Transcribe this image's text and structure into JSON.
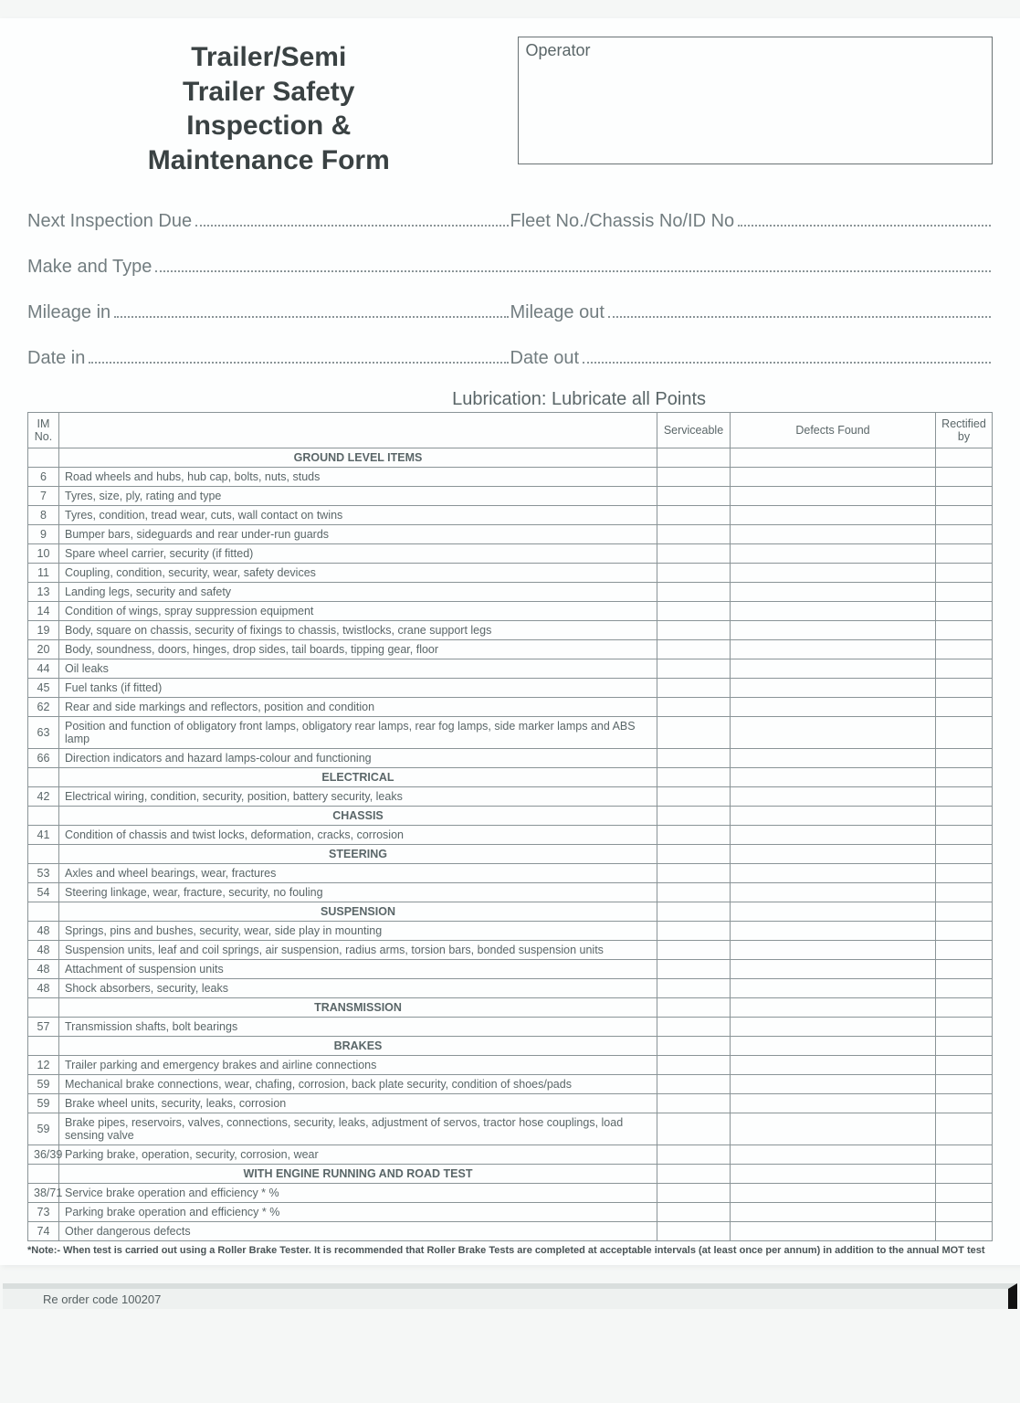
{
  "title_lines": [
    "Trailer/Semi",
    "Trailer Safety",
    "Inspection &",
    "Maintenance Form"
  ],
  "operator_label": "Operator",
  "fields": {
    "next_inspection": "Next Inspection Due",
    "fleet_no": "Fleet No./Chassis No/ID No",
    "make_type": "Make and Type",
    "mileage_in": "Mileage in",
    "mileage_out": "Mileage out",
    "date_in": "Date in",
    "date_out": "Date out"
  },
  "lubrication_note": "Lubrication: Lubricate all Points",
  "columns": {
    "im": "IM No.",
    "serviceable": "Serviceable",
    "defects": "Defects Found",
    "rectified": "Rectified by"
  },
  "rows": [
    {
      "type": "section",
      "label": "GROUND LEVEL ITEMS"
    },
    {
      "im": "6",
      "desc": "Road wheels and hubs, hub cap, bolts, nuts, studs"
    },
    {
      "im": "7",
      "desc": "Tyres, size, ply, rating and type"
    },
    {
      "im": "8",
      "desc": "Tyres, condition, tread wear, cuts, wall contact on twins"
    },
    {
      "im": "9",
      "desc": "Bumper bars, sideguards and rear under-run guards"
    },
    {
      "im": "10",
      "desc": "Spare wheel carrier, security (if fitted)"
    },
    {
      "im": "11",
      "desc": "Coupling, condition, security, wear, safety devices"
    },
    {
      "im": "13",
      "desc": "Landing legs, security and safety"
    },
    {
      "im": "14",
      "desc": "Condition of wings, spray suppression equipment"
    },
    {
      "im": "19",
      "desc": "Body, square on chassis, security of fixings to chassis, twistlocks, crane support legs"
    },
    {
      "im": "20",
      "desc": "Body, soundness, doors, hinges, drop sides, tail boards, tipping gear, floor"
    },
    {
      "im": "44",
      "desc": "Oil leaks"
    },
    {
      "im": "45",
      "desc": "Fuel tanks (if fitted)"
    },
    {
      "im": "62",
      "desc": "Rear and side markings and reflectors, position and condition"
    },
    {
      "im": "63",
      "desc": "Position and function of obligatory front lamps, obligatory rear lamps, rear fog lamps, side marker lamps and ABS lamp"
    },
    {
      "im": "66",
      "desc": "Direction indicators and hazard lamps-colour and functioning"
    },
    {
      "type": "section",
      "label": "ELECTRICAL"
    },
    {
      "im": "42",
      "desc": "Electrical wiring, condition, security, position, battery security, leaks"
    },
    {
      "type": "section",
      "label": "CHASSIS"
    },
    {
      "im": "41",
      "desc": "Condition of chassis and twist locks, deformation, cracks, corrosion"
    },
    {
      "type": "section",
      "label": "STEERING"
    },
    {
      "im": "53",
      "desc": "Axles and wheel bearings, wear, fractures"
    },
    {
      "im": "54",
      "desc": "Steering linkage, wear, fracture, security, no fouling"
    },
    {
      "type": "section",
      "label": "SUSPENSION"
    },
    {
      "im": "48",
      "desc": "Springs, pins and bushes, security, wear, side play in mounting"
    },
    {
      "im": "48",
      "desc": "Suspension units, leaf and coil springs, air suspension, radius arms, torsion bars, bonded suspension units"
    },
    {
      "im": "48",
      "desc": "Attachment of suspension units"
    },
    {
      "im": "48",
      "desc": "Shock absorbers, security, leaks"
    },
    {
      "type": "section",
      "label": "TRANSMISSION"
    },
    {
      "im": "57",
      "desc": "Transmission shafts, bolt bearings"
    },
    {
      "type": "section",
      "label": "BRAKES"
    },
    {
      "im": "12",
      "desc": "Trailer parking and emergency brakes and airline connections"
    },
    {
      "im": "59",
      "desc": "Mechanical brake connections, wear, chafing, corrosion, back plate security, condition of shoes/pads"
    },
    {
      "im": "59",
      "desc": "Brake wheel units, security, leaks, corrosion"
    },
    {
      "im": "59",
      "desc": "Brake pipes, reservoirs, valves, connections, security, leaks, adjustment of servos, tractor hose couplings, load sensing valve"
    },
    {
      "im": "36/39",
      "desc": "Parking brake, operation, security, corrosion, wear"
    },
    {
      "type": "section",
      "label": "WITH ENGINE RUNNING AND ROAD TEST"
    },
    {
      "im": "38/71",
      "desc": "Service brake operation and efficiency       *                   %"
    },
    {
      "im": "73",
      "desc": "Parking brake operation and efficiency            *              %"
    },
    {
      "im": "74",
      "desc": "Other dangerous defects"
    }
  ],
  "footnote": "*Note:- When test is carried out using a Roller Brake Tester. It is recommended that Roller Brake Tests are completed at acceptable intervals (at least once per annum) in addition to the annual MOT test",
  "reorder_code": "Re order code 100207"
}
